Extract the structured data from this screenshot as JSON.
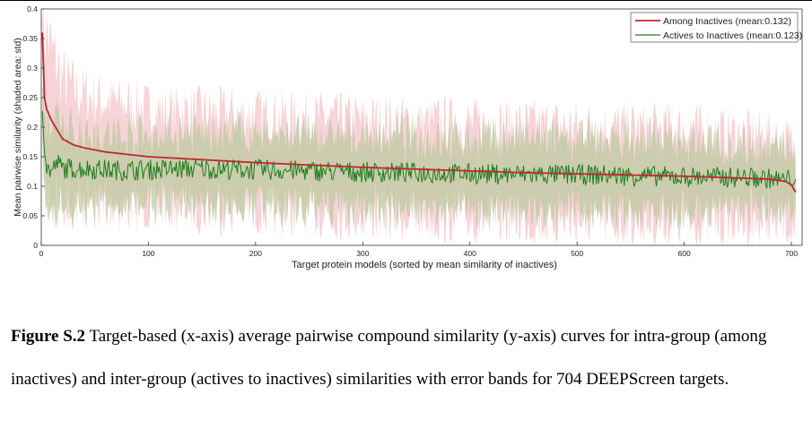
{
  "chart_data": {
    "type": "line",
    "title": "",
    "xlabel": "Target protein models (sorted by mean similarity of inactives)",
    "ylabel": "Mean pairwise similarity (shaded area: std)",
    "xlim": [
      0,
      710
    ],
    "ylim": [
      0,
      0.4
    ],
    "x_ticks": [
      0,
      100,
      200,
      300,
      400,
      500,
      600,
      700
    ],
    "y_ticks": [
      0,
      0.05,
      0.1,
      0.15,
      0.2,
      0.25,
      0.3,
      0.35,
      0.4
    ],
    "x_tick_labels": [
      "0",
      "100",
      "200",
      "300",
      "400",
      "500",
      "600",
      "700"
    ],
    "y_tick_labels": [
      "0",
      "0.05",
      "0.1",
      "0.15",
      "0.2",
      "0.25",
      "0.3",
      "0.35",
      "0.4"
    ],
    "n_targets": 704,
    "legend_position": "top-right",
    "grid": false,
    "series": [
      {
        "name": "Among Inactives (mean:0.132)",
        "color": "#c0282d",
        "band_color": "#f4c6c9",
        "x": [
          1,
          3,
          5,
          10,
          15,
          20,
          30,
          40,
          60,
          80,
          100,
          150,
          200,
          250,
          300,
          350,
          400,
          450,
          500,
          550,
          600,
          650,
          680,
          695,
          700,
          704
        ],
        "y": [
          0.36,
          0.25,
          0.23,
          0.21,
          0.195,
          0.18,
          0.17,
          0.165,
          0.158,
          0.154,
          0.15,
          0.145,
          0.14,
          0.136,
          0.132,
          0.129,
          0.126,
          0.123,
          0.121,
          0.119,
          0.117,
          0.114,
          0.112,
          0.108,
          0.102,
          0.09
        ],
        "std": [
          0.06,
          0.11,
          0.13,
          0.12,
          0.11,
          0.1,
          0.095,
          0.09,
          0.085,
          0.085,
          0.08,
          0.08,
          0.08,
          0.08,
          0.08,
          0.08,
          0.08,
          0.08,
          0.08,
          0.08,
          0.08,
          0.075,
          0.075,
          0.07,
          0.07,
          0.07
        ]
      },
      {
        "name": "Actives to Inactives (mean:0.123)",
        "color": "#1e7d1e",
        "band_color": "#b9c99c",
        "x": [
          1,
          3,
          5,
          10,
          15,
          20,
          30,
          40,
          60,
          80,
          100,
          150,
          200,
          250,
          300,
          350,
          400,
          450,
          500,
          550,
          600,
          650,
          680,
          695,
          700,
          704
        ],
        "y": [
          0.24,
          0.17,
          0.13,
          0.125,
          0.14,
          0.13,
          0.13,
          0.13,
          0.128,
          0.127,
          0.128,
          0.13,
          0.128,
          0.126,
          0.124,
          0.123,
          0.121,
          0.12,
          0.12,
          0.118,
          0.116,
          0.115,
          0.113,
          0.11,
          0.115,
          0.112
        ],
        "std": [
          0.07,
          0.08,
          0.07,
          0.07,
          0.07,
          0.07,
          0.065,
          0.065,
          0.06,
          0.06,
          0.06,
          0.06,
          0.06,
          0.06,
          0.06,
          0.06,
          0.06,
          0.06,
          0.06,
          0.06,
          0.06,
          0.055,
          0.055,
          0.05,
          0.05,
          0.05
        ]
      }
    ]
  },
  "caption": {
    "label": "Figure S.2",
    "text": " Target-based (x-axis) average pairwise compound similarity (y-axis) curves for intra-group (among inactives) and inter-group (actives to inactives) similarities with error bands for 704 DEEPScreen targets."
  }
}
